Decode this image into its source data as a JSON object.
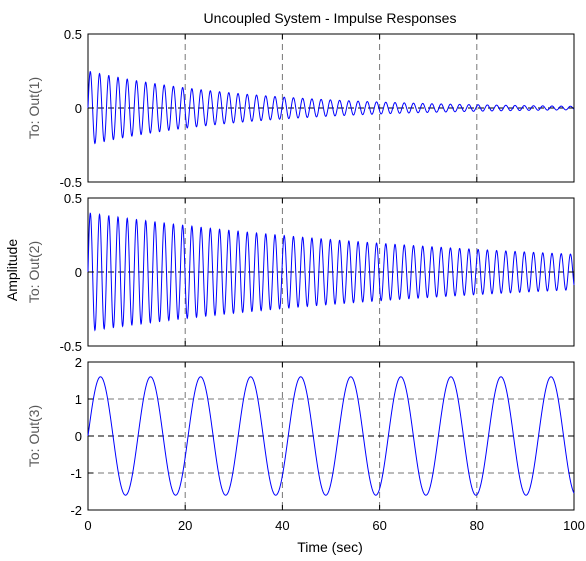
{
  "chart_data": {
    "type": "line",
    "title": "Uncoupled System - Impulse Responses",
    "xlabel": "Time (sec)",
    "ylabel": "Amplitude",
    "xlim": [
      0,
      100
    ],
    "xticks": [
      "0",
      "20",
      "40",
      "60",
      "80",
      "100"
    ],
    "grid": "dashed vertical at x ticks; dashed zero line; dashed y gridlines on third panel",
    "line_color": "#0000ff",
    "panels": [
      {
        "row_label": "To: Out(1)",
        "ylim": [
          -0.5,
          0.5
        ],
        "yticks": [
          "0.5",
          "0",
          "-0.5"
        ],
        "yticks_values": [
          0.5,
          0,
          -0.5
        ],
        "signal": {
          "amplitude_start": 0.25,
          "amplitude_end": 0.012,
          "period_sec": 1.9,
          "phase": "sine"
        }
      },
      {
        "row_label": "To: Out(2)",
        "ylim": [
          -0.5,
          0.5
        ],
        "yticks": [
          "0.5",
          "0",
          "-0.5"
        ],
        "yticks_values": [
          0.5,
          0,
          -0.5
        ],
        "signal": {
          "amplitude_start": 0.4,
          "amplitude_end": 0.12,
          "period_sec": 1.9,
          "phase": "sine"
        }
      },
      {
        "row_label": "To: Out(3)",
        "ylim": [
          -2,
          2
        ],
        "yticks": [
          "2",
          "1",
          "0",
          "-1",
          "-2"
        ],
        "yticks_values": [
          2,
          1,
          0,
          -1,
          -2
        ],
        "signal": {
          "amplitude_start": 1.6,
          "amplitude_end": 1.6,
          "period_sec": 10.3,
          "phase": "sine"
        }
      }
    ]
  }
}
